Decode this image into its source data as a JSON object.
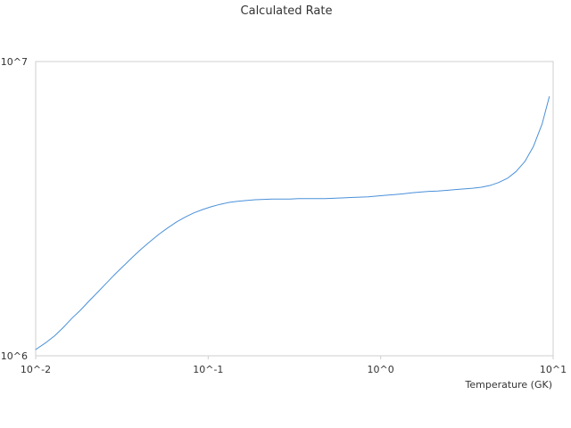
{
  "chart_data": {
    "type": "line",
    "title": "Calculated Rate",
    "xlabel": "Temperature (GK)",
    "ylabel": "",
    "x_scale": "log",
    "y_scale": "log",
    "xlim": [
      0.01,
      10
    ],
    "ylim": [
      1000000,
      10000000
    ],
    "x_tick_labels": [
      "10^-2",
      "10^-1",
      "10^0",
      "10^1"
    ],
    "y_tick_labels": [
      "10^6",
      "10^7"
    ],
    "grid": false,
    "legend": "none",
    "series": [
      {
        "color": "#4a90d9",
        "x": [
          0.01,
          0.0115,
          0.0129,
          0.0145,
          0.0162,
          0.0182,
          0.0205,
          0.023,
          0.0258,
          0.029,
          0.0326,
          0.0366,
          0.0411,
          0.0462,
          0.0519,
          0.0583,
          0.0655,
          0.0736,
          0.0827,
          0.0929,
          0.104,
          0.117,
          0.132,
          0.148,
          0.166,
          0.187,
          0.21,
          0.235,
          0.264,
          0.297,
          0.334,
          0.375,
          0.421,
          0.473,
          0.531,
          0.596,
          0.67,
          0.752,
          0.845,
          0.949,
          1.07,
          1.2,
          1.35,
          1.51,
          1.7,
          1.91,
          2.14,
          2.41,
          2.7,
          3.04,
          3.41,
          3.83,
          4.3,
          4.83,
          5.43,
          6.1,
          6.85,
          7.69,
          8.64,
          9.5
        ],
        "y": [
          1050000,
          1110000,
          1170000,
          1250000,
          1340000,
          1430000,
          1540000,
          1650000,
          1770000,
          1900000,
          2030000,
          2170000,
          2310000,
          2450000,
          2590000,
          2720000,
          2850000,
          2960000,
          3060000,
          3140000,
          3210000,
          3270000,
          3320000,
          3350000,
          3370000,
          3390000,
          3400000,
          3410000,
          3410000,
          3410000,
          3420000,
          3420000,
          3420000,
          3420000,
          3430000,
          3440000,
          3450000,
          3460000,
          3470000,
          3490000,
          3510000,
          3530000,
          3550000,
          3580000,
          3600000,
          3620000,
          3630000,
          3650000,
          3670000,
          3690000,
          3710000,
          3740000,
          3790000,
          3880000,
          4010000,
          4230000,
          4570000,
          5150000,
          6150000,
          7600000
        ]
      }
    ]
  }
}
